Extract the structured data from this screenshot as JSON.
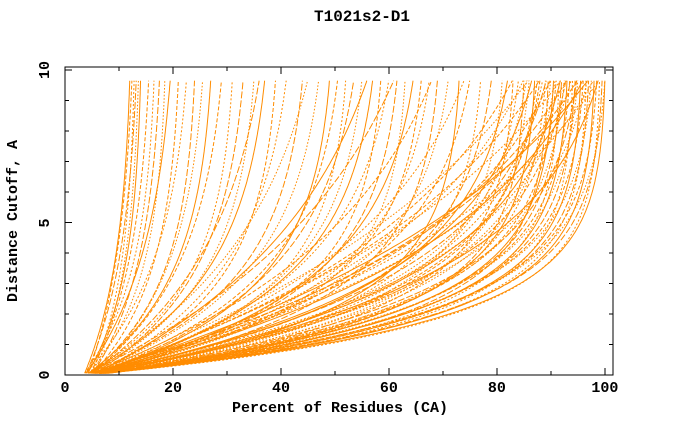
{
  "chart_data": {
    "type": "line",
    "title": "T1021s2-D1",
    "xlabel": "Percent of Residues (CA)",
    "ylabel": "Distance Cutoff, A",
    "xlim": [
      0,
      100
    ],
    "ylim": [
      0,
      10
    ],
    "x_axis": {
      "major_ticks": [
        0,
        20,
        40,
        60,
        80,
        100
      ],
      "major_labels": [
        "0",
        "20",
        "40",
        "60",
        "80",
        "100"
      ],
      "minor_ticks": [
        10,
        30,
        50,
        70,
        90
      ]
    },
    "y_axis": {
      "major_ticks": [
        0,
        5,
        10
      ],
      "major_labels": [
        "0",
        "5",
        "10"
      ],
      "minor_ticks": [
        1,
        2,
        3,
        4,
        6,
        7,
        8,
        9
      ]
    },
    "grid": false,
    "legend": "none",
    "line_color": "#ff8c00",
    "axis_color": "#000000",
    "background_color": "#ffffff",
    "curve_top_y": 9.7,
    "curve_model": "each curve: x(y) = e - (e - s) * exp(-k*y), e solved so x(curve_top_y) = t, x clamped to 100; triples below are [s_start_percent, t_top_percent, k_rate]",
    "curves": [
      [
        3.5,
        12,
        0.26
      ],
      [
        4.2,
        12.4,
        0.22
      ],
      [
        4.8,
        12.8,
        0.3
      ],
      [
        3.8,
        13.2,
        0.24
      ],
      [
        5.2,
        13.6,
        0.28
      ],
      [
        4.0,
        14,
        0.32
      ],
      [
        4.5,
        15.5,
        0.25
      ],
      [
        3.4,
        16.5,
        0.3
      ],
      [
        5.0,
        17.5,
        0.27
      ],
      [
        4.2,
        18.5,
        0.33
      ],
      [
        3.7,
        19.5,
        0.23
      ],
      [
        4.9,
        21,
        0.31
      ],
      [
        3.5,
        22.5,
        0.26
      ],
      [
        4.4,
        24,
        0.34
      ],
      [
        5.3,
        25.5,
        0.28
      ],
      [
        3.9,
        27,
        0.32
      ],
      [
        4.6,
        29,
        0.27
      ],
      [
        3.6,
        31,
        0.35
      ],
      [
        5.1,
        33,
        0.3
      ],
      [
        4.3,
        35,
        0.33
      ],
      [
        3.8,
        37,
        0.3
      ],
      [
        4.7,
        39,
        0.36
      ],
      [
        5.2,
        41,
        0.28
      ],
      [
        3.5,
        44,
        0.34
      ],
      [
        4.1,
        47,
        0.31
      ],
      [
        4.9,
        49,
        0.37
      ],
      [
        3.6,
        50.5,
        0.33
      ],
      [
        4.4,
        52,
        0.4
      ],
      [
        5.0,
        53.5,
        0.3
      ],
      [
        3.9,
        55,
        0.36
      ],
      [
        4.6,
        57,
        0.34
      ],
      [
        3.5,
        58.5,
        0.42
      ],
      [
        4.2,
        60,
        0.31
      ],
      [
        5.1,
        61.5,
        0.38
      ],
      [
        3.8,
        63,
        0.45
      ],
      [
        4.8,
        64.5,
        0.33
      ],
      [
        3.6,
        66,
        0.4
      ],
      [
        4.3,
        67.5,
        0.35
      ],
      [
        5.0,
        69,
        0.42
      ],
      [
        3.7,
        71,
        0.36
      ],
      [
        4.5,
        73,
        0.48
      ],
      [
        3.9,
        75,
        0.33
      ],
      [
        4.7,
        77,
        0.44
      ],
      [
        3.5,
        79,
        0.38
      ],
      [
        4.2,
        81,
        0.46
      ],
      [
        3.8,
        82,
        0.35
      ],
      [
        5.0,
        83,
        0.5
      ],
      [
        4.4,
        84,
        0.4
      ],
      [
        3.6,
        85,
        0.55
      ],
      [
        4.8,
        86,
        0.44
      ],
      [
        3.9,
        87,
        0.52
      ],
      [
        4.5,
        88,
        0.38
      ],
      [
        3.5,
        89,
        0.48
      ],
      [
        4.9,
        89.5,
        0.56
      ],
      [
        4.1,
        90,
        0.42
      ],
      [
        3.7,
        90.5,
        0.52
      ],
      [
        5.2,
        91,
        0.46
      ],
      [
        4.3,
        91.5,
        0.58
      ],
      [
        3.8,
        92,
        0.5
      ],
      [
        4.6,
        92.5,
        0.44
      ],
      [
        3.4,
        93,
        0.54
      ],
      [
        5.0,
        93.5,
        0.48
      ],
      [
        4.2,
        94,
        0.6
      ],
      [
        3.6,
        94.5,
        0.52
      ],
      [
        4.8,
        95,
        0.46
      ],
      [
        3.9,
        95.5,
        0.56
      ],
      [
        4.4,
        96,
        0.5
      ],
      [
        3.5,
        96.5,
        0.6
      ],
      [
        5.1,
        97,
        0.54
      ],
      [
        4.0,
        97.5,
        0.48
      ],
      [
        4.7,
        98,
        0.58
      ],
      [
        3.7,
        98.5,
        0.52
      ],
      [
        4.3,
        99,
        0.62
      ],
      [
        3.8,
        99.5,
        0.56
      ],
      [
        4.5,
        100,
        0.5
      ],
      [
        3.6,
        100,
        0.6
      ],
      [
        4.0,
        88,
        0.16
      ],
      [
        4.6,
        92,
        0.14
      ],
      [
        3.7,
        95,
        0.18
      ],
      [
        5.0,
        85,
        0.2
      ],
      [
        4.3,
        97,
        0.15
      ],
      [
        3.9,
        90,
        0.22
      ],
      [
        4.7,
        99,
        0.17
      ],
      [
        3.5,
        93,
        0.19
      ],
      [
        4.4,
        86,
        0.13
      ],
      [
        5.1,
        96,
        0.21
      ],
      [
        4.1,
        83,
        0.18
      ],
      [
        3.8,
        98,
        0.2
      ],
      [
        4.5,
        36,
        0.22
      ],
      [
        3.7,
        45,
        0.2
      ],
      [
        5.0,
        56,
        0.18
      ],
      [
        4.2,
        68,
        0.19
      ],
      [
        4.8,
        74,
        0.21
      ],
      [
        3.6,
        61,
        0.16
      ],
      [
        4.0,
        85.5,
        0.36
      ],
      [
        4.6,
        86.5,
        0.3
      ],
      [
        3.8,
        87.5,
        0.4
      ],
      [
        5.0,
        88.5,
        0.34
      ],
      [
        4.2,
        89.2,
        0.3
      ],
      [
        3.6,
        90.8,
        0.38
      ],
      [
        4.8,
        91.8,
        0.32
      ],
      [
        4.1,
        92.8,
        0.36
      ],
      [
        3.9,
        93.8,
        0.3
      ],
      [
        4.5,
        94.8,
        0.4
      ],
      [
        3.7,
        96.8,
        0.34
      ],
      [
        4.9,
        98.8,
        0.3
      ]
    ]
  }
}
